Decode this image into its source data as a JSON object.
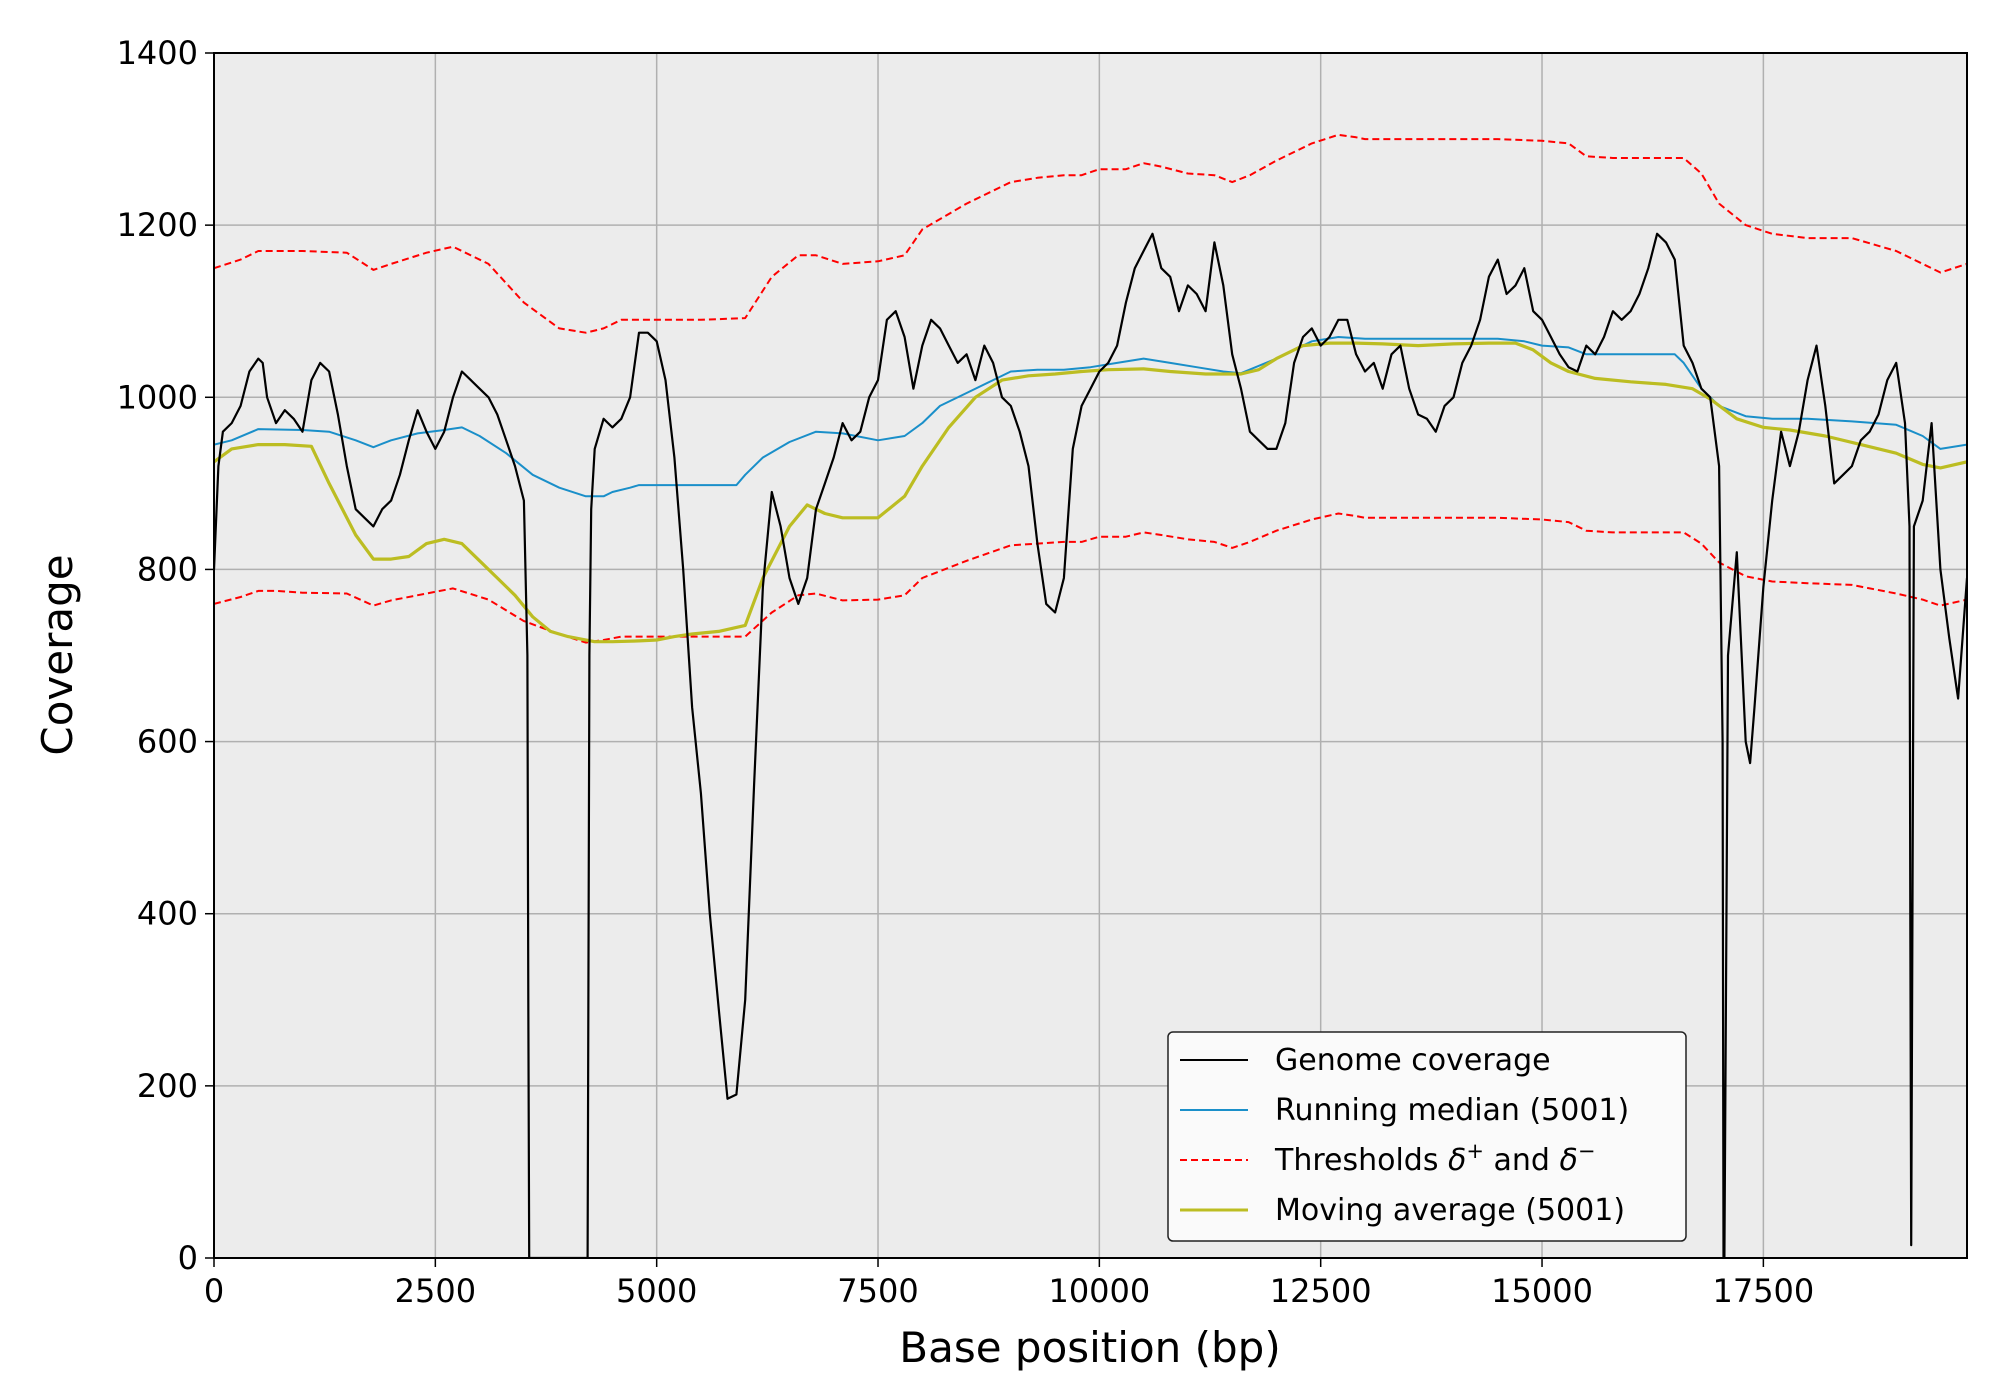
{
  "chart_data": {
    "type": "line",
    "title": "",
    "xlabel": "Base position (bp)",
    "ylabel": "Coverage",
    "xlim": [
      0,
      19800
    ],
    "ylim": [
      0,
      1400
    ],
    "xticks": [
      0,
      2500,
      5000,
      7500,
      10000,
      12500,
      15000,
      17500
    ],
    "yticks": [
      0,
      200,
      400,
      600,
      800,
      1000,
      1200,
      1400
    ],
    "xtick_labels": [
      "0",
      "2500",
      "5000",
      "7500",
      "10000",
      "12500",
      "15000",
      "17500"
    ],
    "ytick_labels": [
      "0",
      "200",
      "400",
      "600",
      "800",
      "1000",
      "1200",
      "1400"
    ],
    "grid": true,
    "background": "#ececec",
    "legend_position": "lower-right",
    "legend": {
      "genome": "Genome coverage",
      "median": "Running median (5001)",
      "thresholds_prefix": "Thresholds ",
      "delta": "δ",
      "plus": "+",
      "and": " and ",
      "minus": "−",
      "moving": "Moving average (5001)"
    },
    "series": [
      {
        "name": "Genome coverage",
        "color": "#000000",
        "style": "solid",
        "x": [
          0,
          50,
          100,
          200,
          300,
          400,
          500,
          550,
          600,
          700,
          800,
          900,
          1000,
          1100,
          1200,
          1300,
          1400,
          1500,
          1600,
          1700,
          1800,
          1900,
          2000,
          2100,
          2200,
          2300,
          2400,
          2500,
          2600,
          2700,
          2800,
          2900,
          3000,
          3100,
          3200,
          3300,
          3400,
          3500,
          3540,
          3550,
          3560,
          4200,
          4220,
          4240,
          4260,
          4300,
          4400,
          4500,
          4600,
          4700,
          4800,
          4900,
          5000,
          5100,
          5200,
          5300,
          5400,
          5500,
          5600,
          5700,
          5800,
          5900,
          6000,
          6100,
          6200,
          6300,
          6400,
          6500,
          6600,
          6700,
          6800,
          6900,
          7000,
          7100,
          7200,
          7300,
          7400,
          7500,
          7600,
          7700,
          7800,
          7900,
          8000,
          8100,
          8200,
          8300,
          8400,
          8500,
          8600,
          8700,
          8800,
          8900,
          9000,
          9100,
          9200,
          9300,
          9400,
          9500,
          9600,
          9700,
          9800,
          9900,
          10000,
          10100,
          10200,
          10300,
          10400,
          10500,
          10600,
          10700,
          10800,
          10900,
          11000,
          11100,
          11200,
          11300,
          11400,
          11500,
          11600,
          11700,
          11800,
          11900,
          12000,
          12100,
          12200,
          12300,
          12400,
          12500,
          12600,
          12700,
          12800,
          12900,
          13000,
          13100,
          13200,
          13300,
          13400,
          13500,
          13600,
          13700,
          13800,
          13900,
          14000,
          14100,
          14200,
          14300,
          14400,
          14500,
          14600,
          14700,
          14800,
          14900,
          15000,
          15100,
          15200,
          15300,
          15400,
          15500,
          15600,
          15700,
          15800,
          15900,
          16000,
          16100,
          16200,
          16300,
          16400,
          16500,
          16600,
          16700,
          16800,
          16900,
          17000,
          17040,
          17050,
          17060,
          17100,
          17200,
          17300,
          17350,
          17400,
          17500,
          17600,
          17700,
          17800,
          17900,
          18000,
          18100,
          18200,
          18300,
          18400,
          18500,
          18600,
          18700,
          18800,
          18900,
          19000,
          19100,
          19150,
          19160,
          19170,
          19200,
          19300,
          19400,
          19500,
          19600,
          19700,
          19800
        ],
        "values": [
          800,
          920,
          960,
          970,
          990,
          1030,
          1045,
          1040,
          1000,
          970,
          985,
          975,
          960,
          1020,
          1040,
          1030,
          980,
          920,
          870,
          860,
          850,
          870,
          880,
          910,
          950,
          985,
          960,
          940,
          960,
          1000,
          1030,
          1020,
          1010,
          1000,
          980,
          950,
          920,
          880,
          700,
          300,
          0,
          0,
          0,
          700,
          870,
          940,
          975,
          965,
          975,
          1000,
          1075,
          1075,
          1065,
          1020,
          930,
          800,
          640,
          540,
          400,
          290,
          185,
          190,
          300,
          550,
          780,
          890,
          850,
          790,
          760,
          790,
          870,
          900,
          930,
          970,
          950,
          960,
          1000,
          1020,
          1090,
          1100,
          1070,
          1010,
          1060,
          1090,
          1080,
          1060,
          1040,
          1050,
          1020,
          1060,
          1040,
          1000,
          990,
          960,
          920,
          830,
          760,
          750,
          790,
          940,
          990,
          1010,
          1030,
          1040,
          1060,
          1110,
          1150,
          1170,
          1190,
          1150,
          1140,
          1100,
          1130,
          1120,
          1100,
          1180,
          1130,
          1050,
          1010,
          960,
          950,
          940,
          940,
          970,
          1040,
          1070,
          1080,
          1060,
          1070,
          1090,
          1090,
          1050,
          1030,
          1040,
          1010,
          1050,
          1060,
          1010,
          980,
          975,
          960,
          990,
          1000,
          1040,
          1060,
          1090,
          1140,
          1160,
          1120,
          1130,
          1150,
          1100,
          1090,
          1070,
          1050,
          1035,
          1030,
          1060,
          1050,
          1070,
          1100,
          1090,
          1100,
          1120,
          1150,
          1190,
          1180,
          1160,
          1060,
          1040,
          1010,
          1000,
          920,
          600,
          0,
          0,
          700,
          820,
          600,
          575,
          640,
          780,
          880,
          960,
          920,
          960,
          1020,
          1060,
          990,
          900,
          910,
          920,
          950,
          960,
          980,
          1020,
          1040,
          970,
          850,
          400,
          15,
          850,
          880,
          970,
          800,
          720,
          650,
          790
        ]
      },
      {
        "name": "Running median (5001)",
        "color": "#1a8fc9",
        "style": "solid",
        "x": [
          0,
          200,
          500,
          1000,
          1300,
          1600,
          1800,
          2000,
          2300,
          2600,
          2800,
          3000,
          3300,
          3600,
          3900,
          4200,
          4400,
          4500,
          4700,
          4800,
          5000,
          5300,
          5600,
          5900,
          6000,
          6200,
          6500,
          6800,
          7100,
          7500,
          7800,
          8000,
          8200,
          8500,
          8800,
          9000,
          9300,
          9600,
          9900,
          10200,
          10500,
          10800,
          11100,
          11400,
          11600,
          12000,
          12400,
          12700,
          13000,
          13500,
          14000,
          14500,
          14800,
          15000,
          15300,
          15500,
          15800,
          16200,
          16500,
          16600,
          16800,
          17000,
          17300,
          17600,
          18000,
          18500,
          19000,
          19300,
          19500,
          19800
        ],
        "values": [
          945,
          950,
          963,
          962,
          960,
          950,
          942,
          950,
          958,
          962,
          965,
          955,
          935,
          910,
          895,
          885,
          885,
          890,
          895,
          898,
          898,
          898,
          898,
          898,
          910,
          930,
          948,
          960,
          958,
          950,
          955,
          970,
          990,
          1005,
          1020,
          1030,
          1032,
          1032,
          1035,
          1040,
          1045,
          1040,
          1035,
          1030,
          1028,
          1045,
          1065,
          1070,
          1068,
          1068,
          1068,
          1068,
          1065,
          1060,
          1058,
          1050,
          1050,
          1050,
          1050,
          1040,
          1010,
          990,
          978,
          975,
          975,
          972,
          968,
          955,
          940,
          945
        ]
      },
      {
        "name": "Threshold δ+",
        "color": "#ff0000",
        "style": "dashed",
        "x": [
          0,
          300,
          500,
          700,
          1000,
          1500,
          1800,
          2000,
          2400,
          2700,
          3100,
          3500,
          3900,
          4200,
          4400,
          4600,
          4800,
          5000,
          5500,
          6000,
          6300,
          6600,
          6800,
          7100,
          7500,
          7800,
          8000,
          8500,
          9000,
          9300,
          9600,
          9800,
          10000,
          10300,
          10500,
          10700,
          11000,
          11300,
          11500,
          11700,
          12000,
          12400,
          12700,
          12900,
          13000,
          13500,
          14000,
          14500,
          15000,
          15300,
          15500,
          15800,
          16300,
          16600,
          16800,
          17000,
          17300,
          17600,
          18000,
          18500,
          19000,
          19300,
          19500,
          19800
        ],
        "values": [
          1150,
          1160,
          1170,
          1170,
          1170,
          1168,
          1148,
          1155,
          1168,
          1175,
          1155,
          1110,
          1080,
          1075,
          1080,
          1090,
          1090,
          1090,
          1090,
          1092,
          1140,
          1165,
          1165,
          1155,
          1158,
          1165,
          1195,
          1225,
          1250,
          1255,
          1258,
          1258,
          1265,
          1265,
          1272,
          1268,
          1260,
          1258,
          1250,
          1258,
          1275,
          1295,
          1305,
          1302,
          1300,
          1300,
          1300,
          1300,
          1298,
          1295,
          1280,
          1278,
          1278,
          1278,
          1260,
          1225,
          1200,
          1190,
          1185,
          1185,
          1170,
          1155,
          1145,
          1155
        ]
      },
      {
        "name": "Threshold δ−",
        "color": "#ff0000",
        "style": "dashed",
        "x": [
          0,
          300,
          500,
          700,
          1000,
          1500,
          1800,
          2000,
          2400,
          2700,
          3100,
          3500,
          3900,
          4200,
          4400,
          4600,
          4800,
          5000,
          5500,
          6000,
          6300,
          6600,
          6800,
          7100,
          7500,
          7800,
          8000,
          8500,
          9000,
          9300,
          9600,
          9800,
          10000,
          10300,
          10500,
          10700,
          11000,
          11300,
          11500,
          11700,
          12000,
          12400,
          12700,
          12900,
          13000,
          13500,
          14000,
          14500,
          15000,
          15300,
          15500,
          15800,
          16300,
          16600,
          16800,
          17000,
          17300,
          17600,
          18000,
          18500,
          19000,
          19300,
          19500,
          19800
        ],
        "values": [
          760,
          768,
          775,
          775,
          773,
          772,
          758,
          764,
          772,
          778,
          765,
          740,
          725,
          715,
          718,
          722,
          722,
          722,
          722,
          722,
          750,
          770,
          772,
          764,
          765,
          770,
          790,
          810,
          828,
          830,
          832,
          832,
          838,
          838,
          843,
          840,
          835,
          832,
          825,
          832,
          845,
          858,
          865,
          862,
          860,
          860,
          860,
          860,
          858,
          855,
          845,
          843,
          843,
          843,
          830,
          808,
          792,
          786,
          784,
          782,
          772,
          765,
          758,
          765
        ]
      },
      {
        "name": "Moving average (5001)",
        "color": "#bcbd22",
        "style": "solid",
        "x": [
          0,
          200,
          500,
          800,
          1100,
          1300,
          1600,
          1800,
          2000,
          2200,
          2400,
          2600,
          2800,
          3000,
          3200,
          3400,
          3600,
          3800,
          4000,
          4300,
          4500,
          4800,
          5000,
          5200,
          5400,
          5700,
          6000,
          6200,
          6500,
          6700,
          6900,
          7100,
          7500,
          7800,
          8000,
          8300,
          8600,
          8900,
          9200,
          9500,
          9800,
          10100,
          10500,
          10800,
          11200,
          11600,
          11800,
          12000,
          12300,
          12600,
          12900,
          13200,
          13600,
          14000,
          14400,
          14700,
          14900,
          15100,
          15300,
          15600,
          16000,
          16400,
          16700,
          16900,
          17200,
          17500,
          17800,
          18200,
          18600,
          19000,
          19300,
          19500,
          19800
        ],
        "values": [
          925,
          940,
          945,
          945,
          943,
          900,
          840,
          812,
          812,
          815,
          830,
          835,
          830,
          810,
          790,
          770,
          745,
          728,
          722,
          716,
          716,
          717,
          718,
          722,
          725,
          728,
          735,
          790,
          850,
          875,
          865,
          860,
          860,
          885,
          920,
          965,
          1000,
          1020,
          1025,
          1027,
          1030,
          1032,
          1033,
          1030,
          1027,
          1027,
          1032,
          1045,
          1060,
          1063,
          1063,
          1062,
          1060,
          1062,
          1063,
          1063,
          1055,
          1040,
          1030,
          1022,
          1018,
          1015,
          1010,
          998,
          975,
          965,
          962,
          955,
          945,
          935,
          922,
          918,
          925
        ]
      }
    ]
  }
}
